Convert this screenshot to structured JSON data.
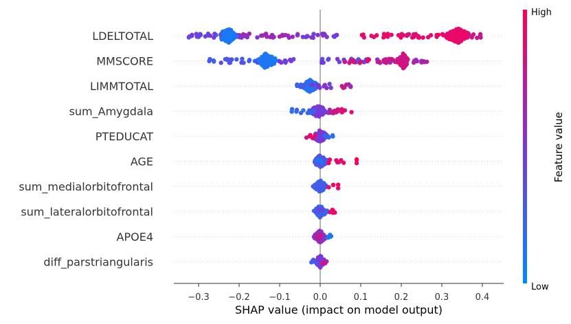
{
  "chart_data": {
    "type": "scatter",
    "subtype": "shap-beeswarm",
    "title": "",
    "xlabel": "SHAP value (impact on model output)",
    "xlim": [
      -0.36,
      0.45
    ],
    "xticks": [
      -0.3,
      -0.2,
      -0.1,
      0.0,
      0.1,
      0.2,
      0.3,
      0.4
    ],
    "xtick_labels": [
      "−0.3",
      "−0.2",
      "−0.1",
      "0.0",
      "0.1",
      "0.2",
      "0.3",
      "0.4"
    ],
    "colorbar": {
      "title": "Feature value",
      "high_label": "High",
      "low_label": "Low",
      "high_color": "#ff0052",
      "mid_color": "#7b37d8",
      "low_color": "#008bfb"
    },
    "zero_line_color": "#999999",
    "features": [
      {
        "name": "LDELTOTAL",
        "clusters": [
          [
            -0.23,
            0.1,
            0.15
          ],
          [
            -0.33,
            -0.2,
            0.45
          ],
          [
            -0.2,
            -0.05,
            0.6
          ],
          [
            -0.05,
            0.05,
            0.5
          ],
          [
            0.28,
            0.4,
            0.78
          ],
          [
            0.34,
            0.1,
            0.9
          ]
        ]
      },
      {
        "name": "MMSCORE",
        "clusters": [
          [
            -0.13,
            0.1,
            0.12
          ],
          [
            -0.28,
            -0.14,
            0.3
          ],
          [
            -0.1,
            -0.05,
            0.45
          ],
          [
            0.0,
            0.12,
            0.45
          ],
          [
            0.14,
            0.2,
            0.55
          ],
          [
            0.2,
            0.06,
            0.82
          ],
          [
            0.21,
            0.27,
            0.65
          ]
        ]
      },
      {
        "name": "LIMMTOTAL",
        "clusters": [
          [
            -0.025,
            0.08,
            0.15
          ],
          [
            -0.06,
            -0.02,
            0.3
          ],
          [
            -0.02,
            0.03,
            0.5
          ],
          [
            0.04,
            0.07,
            0.8
          ],
          [
            0.07,
            0.08,
            0.6
          ]
        ]
      },
      {
        "name": "sum_Amygdala",
        "clusters": [
          [
            -0.005,
            0.08,
            0.5
          ],
          [
            -0.08,
            -0.01,
            0.2
          ],
          [
            0.01,
            0.035,
            0.65
          ],
          [
            0.03,
            0.09,
            0.85
          ]
        ]
      },
      {
        "name": "PTEDUCAT",
        "clusters": [
          [
            0.0,
            0.07,
            0.5
          ],
          [
            -0.04,
            -0.01,
            0.88
          ],
          [
            0.01,
            0.035,
            0.15
          ]
        ]
      },
      {
        "name": "AGE",
        "clusters": [
          [
            0.0,
            0.07,
            0.3
          ],
          [
            -0.01,
            0.01,
            0.15
          ],
          [
            0.02,
            0.06,
            0.9
          ],
          [
            0.09,
            0.09,
            0.95
          ]
        ]
      },
      {
        "name": "sum_medialorbitofrontal",
        "clusters": [
          [
            0.0,
            0.06,
            0.25
          ],
          [
            -0.01,
            0.01,
            0.3
          ],
          [
            0.015,
            0.045,
            0.88
          ]
        ]
      },
      {
        "name": "sum_lateralorbitofrontal",
        "clusters": [
          [
            0.0,
            0.06,
            0.25
          ],
          [
            -0.01,
            0.01,
            0.4
          ],
          [
            0.015,
            0.04,
            0.9
          ]
        ]
      },
      {
        "name": "APOE4",
        "clusters": [
          [
            0.0,
            0.06,
            0.6
          ],
          [
            -0.01,
            0.01,
            0.75
          ],
          [
            0.01,
            0.03,
            0.1
          ]
        ]
      },
      {
        "name": "diff_parstriangularis",
        "clusters": [
          [
            0.0,
            0.05,
            0.5
          ],
          [
            -0.025,
            0.0,
            0.3
          ],
          [
            0.0,
            0.015,
            0.8
          ]
        ]
      }
    ]
  }
}
